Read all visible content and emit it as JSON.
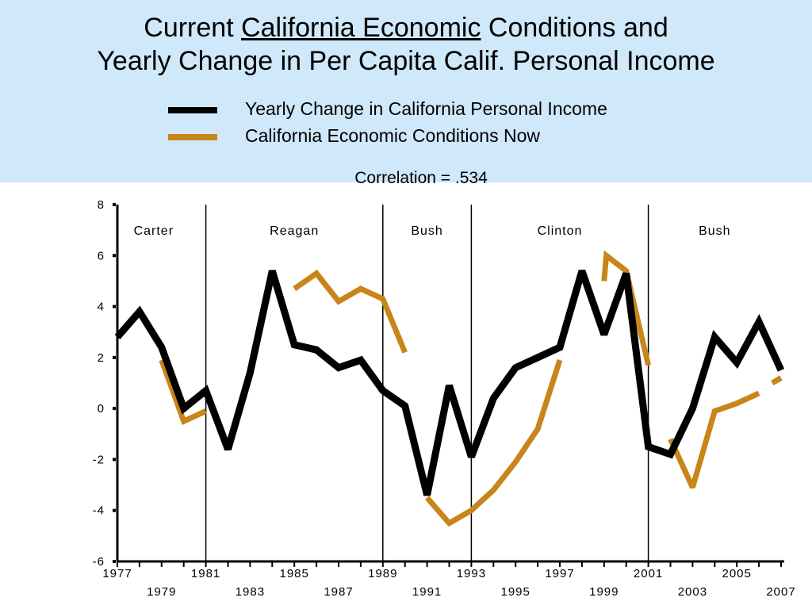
{
  "header": {
    "title_line1_pre": "Current ",
    "title_line1_underlined": "California Economic",
    "title_line1_post": " Conditions and",
    "title_line2": "Yearly Change in Per Capita Calif. Personal Income"
  },
  "legend": {
    "items": [
      {
        "label": "Yearly Change in California Personal Income",
        "color": "#000000"
      },
      {
        "label": "California Economic Conditions Now",
        "color": "#c8861a"
      }
    ]
  },
  "annotation": {
    "correlation": "Correlation = .534"
  },
  "chart_data": {
    "type": "line",
    "ylim": [
      -6,
      8
    ],
    "y_ticks": [
      8,
      6,
      4,
      2,
      0,
      -2,
      -4,
      -6
    ],
    "xlim": [
      1977,
      2007
    ],
    "x_ticks_top": [
      "1977",
      "1981",
      "1985",
      "1989",
      "1993",
      "1997",
      "2001",
      "2005"
    ],
    "x_ticks_bottom": [
      "1979",
      "1983",
      "1987",
      "1991",
      "1995",
      "1999",
      "2003",
      "2007"
    ],
    "eras": [
      {
        "label": "Carter",
        "start": 1977
      },
      {
        "label": "Reagan",
        "start": 1981
      },
      {
        "label": "Bush",
        "start": 1989
      },
      {
        "label": "Clinton",
        "start": 1993
      },
      {
        "label": "Bush",
        "start": 2001
      }
    ],
    "series": [
      {
        "name": "Yearly Change in California Personal Income",
        "color": "#000000",
        "segments": [
          [
            [
              1977,
              2.8
            ],
            [
              1978,
              3.8
            ],
            [
              1979,
              2.4
            ],
            [
              1980,
              0.0
            ],
            [
              1981,
              0.7
            ],
            [
              1982,
              -1.6
            ],
            [
              1983,
              1.4
            ],
            [
              1984,
              5.4
            ],
            [
              1985,
              2.5
            ],
            [
              1986,
              2.3
            ],
            [
              1987,
              1.6
            ],
            [
              1988,
              1.9
            ],
            [
              1989,
              0.7
            ],
            [
              1990,
              0.1
            ],
            [
              1991,
              -3.4
            ],
            [
              1992,
              0.9
            ],
            [
              1993,
              -1.9
            ],
            [
              1994,
              0.4
            ],
            [
              1995,
              1.6
            ],
            [
              1996,
              2.0
            ],
            [
              1997,
              2.4
            ],
            [
              1998,
              5.4
            ],
            [
              1999,
              2.9
            ],
            [
              2000,
              5.3
            ],
            [
              2001,
              -1.5
            ],
            [
              2002,
              -1.8
            ],
            [
              2003,
              0.0
            ],
            [
              2004,
              2.8
            ],
            [
              2005,
              1.8
            ],
            [
              2006,
              3.4
            ],
            [
              2007,
              1.5
            ]
          ]
        ]
      },
      {
        "name": "California Economic Conditions Now",
        "color": "#c8861a",
        "segments": [
          [
            [
              1979,
              1.9
            ],
            [
              1980,
              -0.5
            ],
            [
              1981,
              -0.1
            ]
          ],
          [
            [
              1985,
              4.7
            ],
            [
              1986,
              5.3
            ],
            [
              1987,
              4.2
            ],
            [
              1988,
              4.7
            ],
            [
              1989,
              4.3
            ],
            [
              1990,
              2.2
            ]
          ],
          [
            [
              1991,
              -3.5
            ],
            [
              1992,
              -4.5
            ],
            [
              1993,
              -4.0
            ],
            [
              1994,
              -3.2
            ],
            [
              1995,
              -2.1
            ],
            [
              1996,
              -0.8
            ],
            [
              1997,
              1.9
            ]
          ],
          [
            [
              1999,
              5.0
            ],
            [
              1999.1,
              6.0
            ],
            [
              2000,
              5.4
            ],
            [
              2001,
              1.7
            ]
          ],
          [
            [
              2002,
              -1.2
            ],
            [
              2003,
              -3.1
            ],
            [
              2004,
              -0.1
            ],
            [
              2005,
              0.2
            ],
            [
              2006,
              0.6
            ]
          ],
          [
            [
              2006.6,
              1.0
            ],
            [
              2007,
              1.2
            ]
          ]
        ]
      }
    ]
  }
}
